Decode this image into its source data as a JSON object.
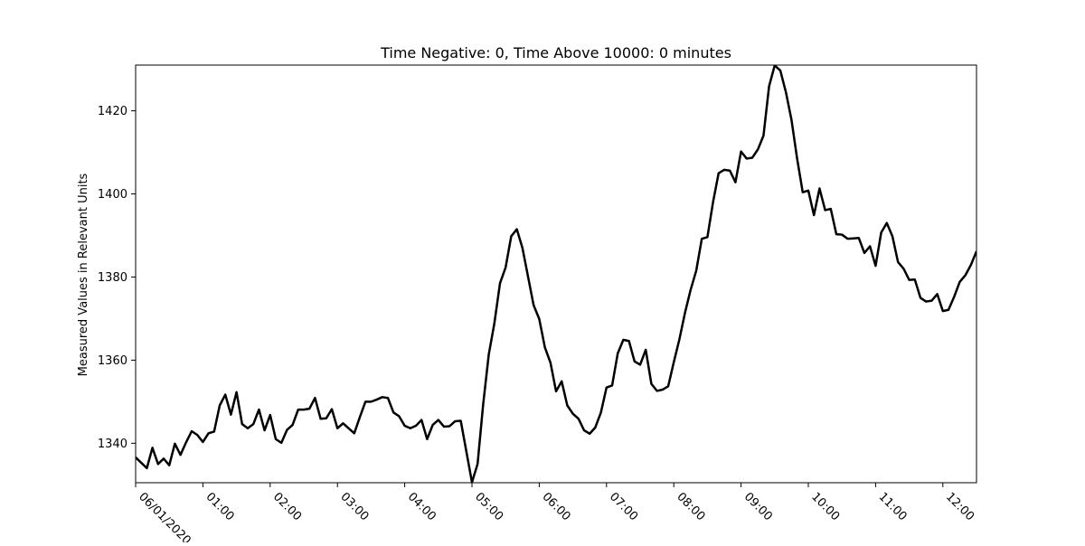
{
  "chart_data": {
    "type": "line",
    "title": "Time Negative: 0, Time Above 10000: 0 minutes",
    "xlabel": "",
    "ylabel": "Measured Values in Relevant Units",
    "x_start": "06/01/2020 00:00",
    "x_step_minutes": 5,
    "xlim_minutes": [
      0,
      750
    ],
    "ylim": [
      1330.5,
      1431
    ],
    "yticks": [
      1340,
      1360,
      1380,
      1400,
      1420
    ],
    "xticks": [
      {
        "minute": 0,
        "label": "06/01/2020"
      },
      {
        "minute": 60,
        "label": "01:00"
      },
      {
        "minute": 120,
        "label": "02:00"
      },
      {
        "minute": 180,
        "label": "03:00"
      },
      {
        "minute": 240,
        "label": "04:00"
      },
      {
        "minute": 300,
        "label": "05:00"
      },
      {
        "minute": 360,
        "label": "06:00"
      },
      {
        "minute": 420,
        "label": "07:00"
      },
      {
        "minute": 480,
        "label": "08:00"
      },
      {
        "minute": 540,
        "label": "09:00"
      },
      {
        "minute": 600,
        "label": "10:00"
      },
      {
        "minute": 660,
        "label": "11:00"
      },
      {
        "minute": 720,
        "label": "12:00"
      }
    ],
    "grid": false,
    "series": [
      {
        "color": "#000000",
        "values": [
          1336.6,
          1335.3,
          1334.0,
          1338.9,
          1335.0,
          1336.3,
          1334.7,
          1339.9,
          1337.2,
          1340.2,
          1342.9,
          1342.0,
          1340.3,
          1342.4,
          1342.8,
          1349.1,
          1351.7,
          1346.9,
          1352.3,
          1344.6,
          1343.6,
          1344.6,
          1348.1,
          1343.1,
          1346.8,
          1341.0,
          1340.1,
          1343.2,
          1344.4,
          1348.1,
          1348.1,
          1348.3,
          1350.9,
          1345.9,
          1346.0,
          1348.2,
          1343.6,
          1344.8,
          1343.6,
          1342.4,
          1346.3,
          1350.0,
          1350.0,
          1350.5,
          1351.1,
          1350.9,
          1347.4,
          1346.5,
          1344.2,
          1343.6,
          1344.2,
          1345.6,
          1341.0,
          1344.4,
          1345.6,
          1344.0,
          1344.1,
          1345.3,
          1345.4,
          1338.0,
          1330.6,
          1335.0,
          1349.4,
          1361.4,
          1368.9,
          1378.5,
          1382.3,
          1389.8,
          1391.5,
          1387.0,
          1380.1,
          1373.2,
          1369.9,
          1363.1,
          1359.4,
          1352.5,
          1354.9,
          1349.1,
          1347.1,
          1345.9,
          1343.1,
          1342.3,
          1343.8,
          1347.4,
          1353.4,
          1353.9,
          1361.6,
          1364.9,
          1364.6,
          1359.7,
          1358.9,
          1362.5,
          1354.3,
          1352.6,
          1352.9,
          1353.7,
          1359.5,
          1365.0,
          1371.4,
          1376.9,
          1381.5,
          1389.2,
          1389.6,
          1398.0,
          1405.0,
          1405.8,
          1405.6,
          1402.8,
          1410.2,
          1408.5,
          1408.7,
          1410.7,
          1414.0,
          1425.9,
          1430.9,
          1429.7,
          1424.5,
          1417.8,
          1408.5,
          1400.4,
          1400.8,
          1394.9,
          1401.3,
          1396.1,
          1396.4,
          1390.3,
          1390.2,
          1389.2,
          1389.3,
          1389.4,
          1385.8,
          1387.4,
          1382.7,
          1390.7,
          1393.0,
          1389.8,
          1383.6,
          1382.0,
          1379.3,
          1379.4,
          1375.0,
          1374.1,
          1374.3,
          1375.9,
          1371.8,
          1372.1,
          1375.2,
          1378.8,
          1380.4,
          1382.9,
          1386.2
        ]
      }
    ]
  }
}
